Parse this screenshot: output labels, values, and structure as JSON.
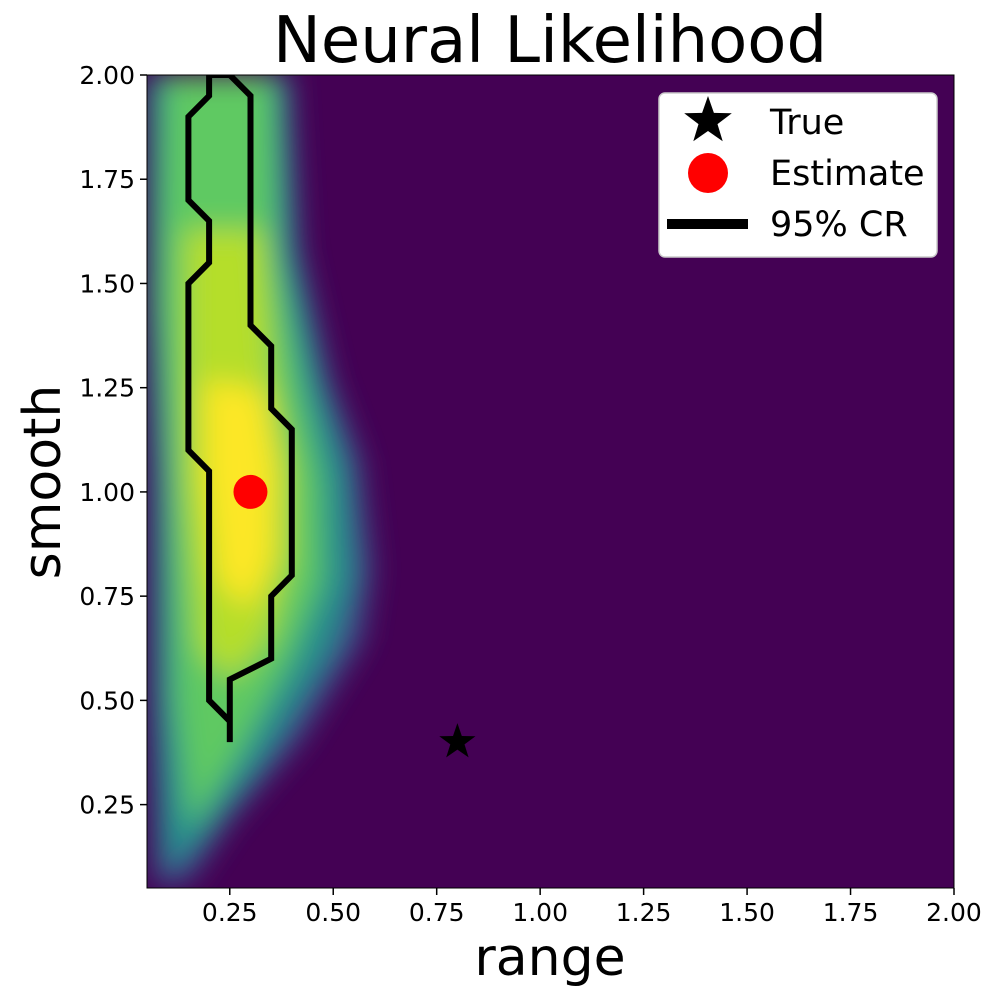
{
  "chart_data": {
    "type": "heatmap",
    "title": "Neural Likelihood",
    "xlabel": "range",
    "ylabel": "smooth",
    "xlim": [
      0.05,
      2.0
    ],
    "ylim": [
      0.05,
      2.0
    ],
    "x_ticks": [
      "0.25",
      "0.50",
      "0.75",
      "1.00",
      "1.25",
      "1.50",
      "1.75",
      "2.00"
    ],
    "y_ticks": [
      "0.25",
      "0.50",
      "0.75",
      "1.00",
      "1.25",
      "1.50",
      "1.75",
      "2.00"
    ],
    "colormap": "viridis",
    "background_color": "#440154",
    "true_point": {
      "label": "True",
      "x": 0.8,
      "y": 0.4,
      "color": "#000000"
    },
    "estimate_point": {
      "label": "Estimate",
      "x": 0.3,
      "y": 1.0,
      "color": "#ff0000"
    },
    "cr_label": "95% CR",
    "cr_color": "#000000",
    "cr_contour": [
      [
        0.25,
        0.4
      ],
      [
        0.25,
        0.45
      ],
      [
        0.2,
        0.5
      ],
      [
        0.2,
        1.05
      ],
      [
        0.15,
        1.1
      ],
      [
        0.15,
        1.5
      ],
      [
        0.2,
        1.55
      ],
      [
        0.2,
        1.65
      ],
      [
        0.15,
        1.7
      ],
      [
        0.15,
        1.9
      ],
      [
        0.2,
        1.95
      ],
      [
        0.2,
        2.0
      ],
      [
        0.25,
        2.0
      ],
      [
        0.3,
        1.95
      ],
      [
        0.3,
        1.4
      ],
      [
        0.35,
        1.35
      ],
      [
        0.35,
        1.2
      ],
      [
        0.4,
        1.15
      ],
      [
        0.4,
        0.8
      ],
      [
        0.35,
        0.75
      ],
      [
        0.35,
        0.6
      ],
      [
        0.25,
        0.55
      ],
      [
        0.25,
        0.4
      ]
    ],
    "legend_position": "upper right",
    "grid": false
  }
}
